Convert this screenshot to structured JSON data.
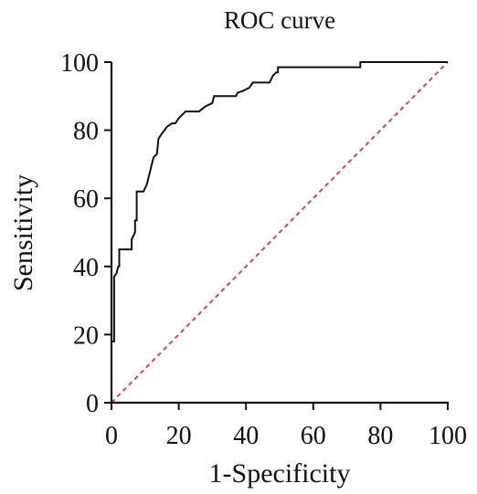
{
  "chart_data": {
    "type": "line",
    "title": "ROC curve",
    "xlabel": "1-Specificity",
    "ylabel": "Sensitivity",
    "xlim": [
      0,
      100
    ],
    "ylim": [
      0,
      100
    ],
    "x_ticks": [
      "0",
      "20",
      "40",
      "60",
      "80",
      "100"
    ],
    "y_ticks": [
      "0",
      "20",
      "40",
      "60",
      "80",
      "100"
    ],
    "grid": false,
    "series": [
      {
        "style": "solid-step",
        "color": "#111111",
        "points": [
          [
            0,
            0
          ],
          [
            0,
            18
          ],
          [
            0.8,
            18
          ],
          [
            0.8,
            37
          ],
          [
            1.5,
            38
          ],
          [
            2,
            40
          ],
          [
            2.3,
            40
          ],
          [
            2.3,
            45
          ],
          [
            6,
            45
          ],
          [
            6,
            48
          ],
          [
            7,
            50
          ],
          [
            7,
            53.5
          ],
          [
            7.5,
            53.5
          ],
          [
            7.5,
            62
          ],
          [
            9.5,
            62
          ],
          [
            10.5,
            64
          ],
          [
            11.5,
            68
          ],
          [
            12.5,
            72
          ],
          [
            13.5,
            73
          ],
          [
            14,
            77.5
          ],
          [
            15,
            79
          ],
          [
            16.5,
            81
          ],
          [
            18,
            82
          ],
          [
            19,
            82
          ],
          [
            20,
            83.5
          ],
          [
            21,
            84.5
          ],
          [
            22,
            85.5
          ],
          [
            26,
            85.5
          ],
          [
            28,
            87
          ],
          [
            30,
            88
          ],
          [
            30.5,
            90
          ],
          [
            37,
            90
          ],
          [
            37.5,
            91
          ],
          [
            39,
            91.5
          ],
          [
            41,
            92.5
          ],
          [
            42,
            94
          ],
          [
            47,
            94
          ],
          [
            48,
            96
          ],
          [
            49,
            97
          ],
          [
            49.5,
            97
          ],
          [
            49.5,
            98.5
          ],
          [
            74,
            98.5
          ],
          [
            74,
            100
          ],
          [
            100,
            100
          ]
        ]
      },
      {
        "style": "dashed",
        "color": "#d24a43",
        "points": [
          [
            0,
            0
          ],
          [
            100,
            100
          ]
        ]
      }
    ]
  }
}
